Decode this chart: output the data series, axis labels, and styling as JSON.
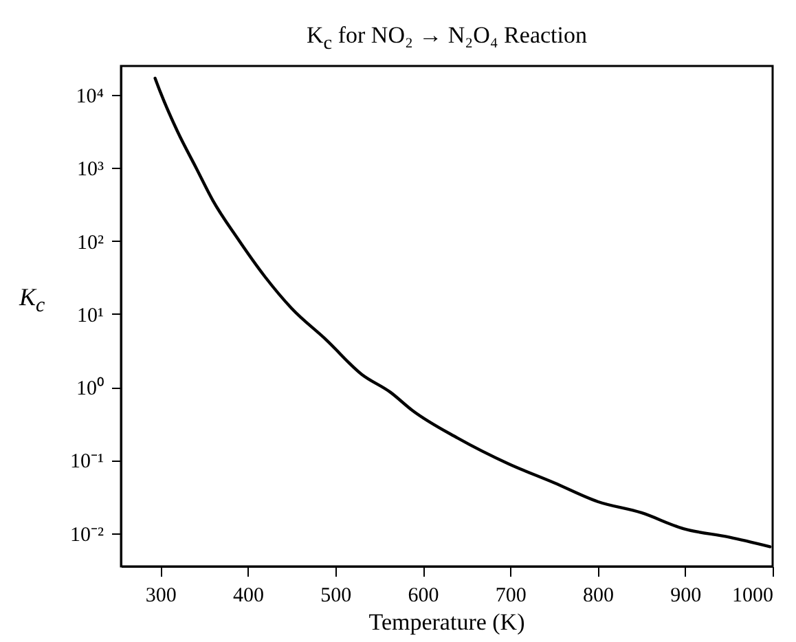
{
  "chart_data": {
    "type": "line",
    "title": "K$_{c}$ for NO₂ → N₂O₄ Reaction",
    "xlabel": "Temperature (K)",
    "ylabel": "K$_{c}$",
    "x": [
      294,
      300,
      320,
      341,
      360,
      388,
      420,
      450,
      490,
      530,
      563,
      588,
      640,
      698,
      750,
      800,
      850,
      898,
      950,
      997
    ],
    "series": [
      {
        "color": "#000000",
        "values": [
          17000,
          11000,
          3100,
          1000,
          360,
          110,
          32,
          12,
          4.4,
          1.5,
          0.85,
          0.48,
          0.2,
          0.089,
          0.049,
          0.027,
          0.019,
          0.0115,
          0.0088,
          0.0065
        ]
      }
    ],
    "xlim": [
      255,
      1000
    ],
    "ylim": [
      0.0035,
      25000
    ],
    "xticks": [
      300,
      400,
      500,
      600,
      700,
      800,
      900,
      1000
    ],
    "yticks": [
      {
        "value": 0.01,
        "label": "10⁻²"
      },
      {
        "value": 0.1,
        "label": "10⁻¹"
      },
      {
        "value": 1,
        "label": "10⁰"
      },
      {
        "value": 10,
        "label": "10¹"
      },
      {
        "value": 100,
        "label": "10²"
      },
      {
        "value": 1000,
        "label": "10³"
      },
      {
        "value": 10000,
        "label": "10⁴"
      }
    ],
    "log": "y",
    "grid": false
  }
}
